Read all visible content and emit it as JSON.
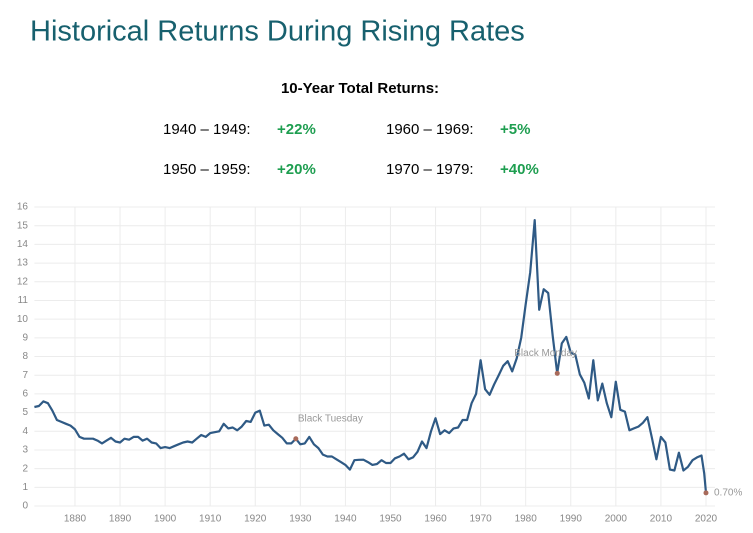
{
  "header": {
    "title": "Historical Returns During Rising Rates",
    "subtitle": "10-Year Total Returns:",
    "returns": [
      {
        "period": "1940 – 1949:",
        "value": "+22%"
      },
      {
        "period": "1950 – 1959:",
        "value": "+20%"
      },
      {
        "period": "1960 – 1969:",
        "value": "+5%"
      },
      {
        "period": "1970 – 1979:",
        "value": "+40%"
      }
    ]
  },
  "chart_data": {
    "type": "line",
    "color": "#2f5a85",
    "grid": true,
    "xlim": [
      1871,
      2022
    ],
    "xticks": [
      1880,
      1890,
      1900,
      1910,
      1920,
      1930,
      1940,
      1950,
      1960,
      1970,
      1980,
      1990,
      2000,
      2010,
      2020
    ],
    "ylim": [
      0,
      16
    ],
    "yticks": [
      0,
      1,
      2,
      3,
      4,
      5,
      6,
      7,
      8,
      9,
      10,
      11,
      12,
      13,
      14,
      15,
      16
    ],
    "x": [
      1871,
      1872,
      1873,
      1874,
      1875,
      1876,
      1877,
      1878,
      1879,
      1880,
      1881,
      1882,
      1883,
      1884,
      1885,
      1886,
      1887,
      1888,
      1889,
      1890,
      1891,
      1892,
      1893,
      1894,
      1895,
      1896,
      1897,
      1898,
      1899,
      1900,
      1901,
      1902,
      1903,
      1904,
      1905,
      1906,
      1907,
      1908,
      1909,
      1910,
      1911,
      1912,
      1913,
      1914,
      1915,
      1916,
      1917,
      1918,
      1919,
      1920,
      1921,
      1922,
      1923,
      1924,
      1925,
      1926,
      1927,
      1928,
      1929,
      1930,
      1931,
      1932,
      1933,
      1934,
      1935,
      1936,
      1937,
      1938,
      1939,
      1940,
      1941,
      1942,
      1943,
      1944,
      1945,
      1946,
      1947,
      1948,
      1949,
      1950,
      1951,
      1952,
      1953,
      1954,
      1955,
      1956,
      1957,
      1958,
      1959,
      1960,
      1961,
      1962,
      1963,
      1964,
      1965,
      1966,
      1967,
      1968,
      1969,
      1970,
      1971,
      1972,
      1973,
      1974,
      1975,
      1976,
      1977,
      1978,
      1979,
      1980,
      1981,
      1982,
      1983,
      1984,
      1985,
      1986,
      1987,
      1988,
      1989,
      1990,
      1991,
      1992,
      1993,
      1994,
      1995,
      1996,
      1997,
      1998,
      1999,
      2000,
      2001,
      2002,
      2003,
      2004,
      2005,
      2006,
      2007,
      2008,
      2009,
      2010,
      2011,
      2012,
      2013,
      2014,
      2015,
      2016,
      2017,
      2018,
      2019,
      2019.6,
      2020
    ],
    "values": [
      5.3,
      5.35,
      5.6,
      5.5,
      5.1,
      4.6,
      4.5,
      4.4,
      4.3,
      4.1,
      3.7,
      3.6,
      3.6,
      3.6,
      3.5,
      3.35,
      3.5,
      3.65,
      3.45,
      3.4,
      3.6,
      3.55,
      3.7,
      3.7,
      3.5,
      3.6,
      3.4,
      3.35,
      3.1,
      3.15,
      3.1,
      3.2,
      3.3,
      3.4,
      3.45,
      3.4,
      3.6,
      3.8,
      3.7,
      3.9,
      3.95,
      4.0,
      4.4,
      4.15,
      4.2,
      4.05,
      4.25,
      4.55,
      4.5,
      5.0,
      5.1,
      4.3,
      4.35,
      4.05,
      3.85,
      3.65,
      3.35,
      3.35,
      3.6,
      3.3,
      3.35,
      3.7,
      3.3,
      3.1,
      2.75,
      2.65,
      2.65,
      2.5,
      2.35,
      2.2,
      1.95,
      2.45,
      2.47,
      2.48,
      2.35,
      2.2,
      2.25,
      2.45,
      2.3,
      2.3,
      2.55,
      2.65,
      2.8,
      2.5,
      2.6,
      2.9,
      3.45,
      3.1,
      4.0,
      4.7,
      3.85,
      4.05,
      3.9,
      4.15,
      4.2,
      4.6,
      4.6,
      5.5,
      6.0,
      7.8,
      6.25,
      5.95,
      6.5,
      7.0,
      7.5,
      7.75,
      7.2,
      7.9,
      9.0,
      10.8,
      12.5,
      15.3,
      10.5,
      11.6,
      11.4,
      9.1,
      7.1,
      8.7,
      9.05,
      8.2,
      8.1,
      7.05,
      6.6,
      5.75,
      7.8,
      5.65,
      6.55,
      5.5,
      4.75,
      6.65,
      5.15,
      5.05,
      4.05,
      4.15,
      4.25,
      4.45,
      4.75,
      3.65,
      2.5,
      3.7,
      3.4,
      1.95,
      1.9,
      2.85,
      1.9,
      2.1,
      2.45,
      2.6,
      2.7,
      1.75,
      0.7
    ],
    "annotations": [
      {
        "text": "Black Tuesday",
        "x": 1929,
        "y": 3.6
      },
      {
        "text": "Black Monday",
        "x": 1987,
        "y": 7.1
      },
      {
        "text": "0.70%",
        "x": 2020,
        "y": 0.7
      }
    ]
  }
}
